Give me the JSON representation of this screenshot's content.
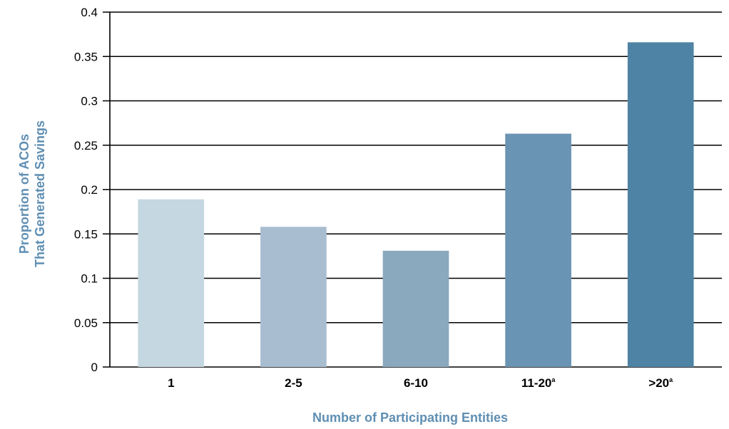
{
  "chart_data": {
    "type": "bar",
    "categories": [
      {
        "label": "1",
        "sup": ""
      },
      {
        "label": "2-5",
        "sup": ""
      },
      {
        "label": "6-10",
        "sup": ""
      },
      {
        "label": "11-20",
        "sup": "a"
      },
      {
        "label": ">20",
        "sup": "a"
      }
    ],
    "values": [
      0.189,
      0.158,
      0.131,
      0.263,
      0.366
    ],
    "bar_colors": [
      "#c5d7e1",
      "#a8bdd0",
      "#8aa8be",
      "#6a94b3",
      "#4f83a5"
    ],
    "title": "",
    "xlabel": "Number of Participating Entities",
    "ylabel_lines": [
      "Proportion of ACOs",
      "That Generated Savings"
    ],
    "ylim": [
      0,
      0.4
    ],
    "yticks": [
      {
        "value": 0,
        "label": "0"
      },
      {
        "value": 0.05,
        "label": "0.05"
      },
      {
        "value": 0.1,
        "label": "0.1"
      },
      {
        "value": 0.15,
        "label": "0.15"
      },
      {
        "value": 0.2,
        "label": "0.2"
      },
      {
        "value": 0.25,
        "label": "0.25"
      },
      {
        "value": 0.3,
        "label": "0.3"
      },
      {
        "value": 0.35,
        "label": "0.35"
      },
      {
        "value": 0.4,
        "label": "0.4"
      }
    ],
    "grid": true,
    "axis_title_color": "#5f8fb3"
  }
}
